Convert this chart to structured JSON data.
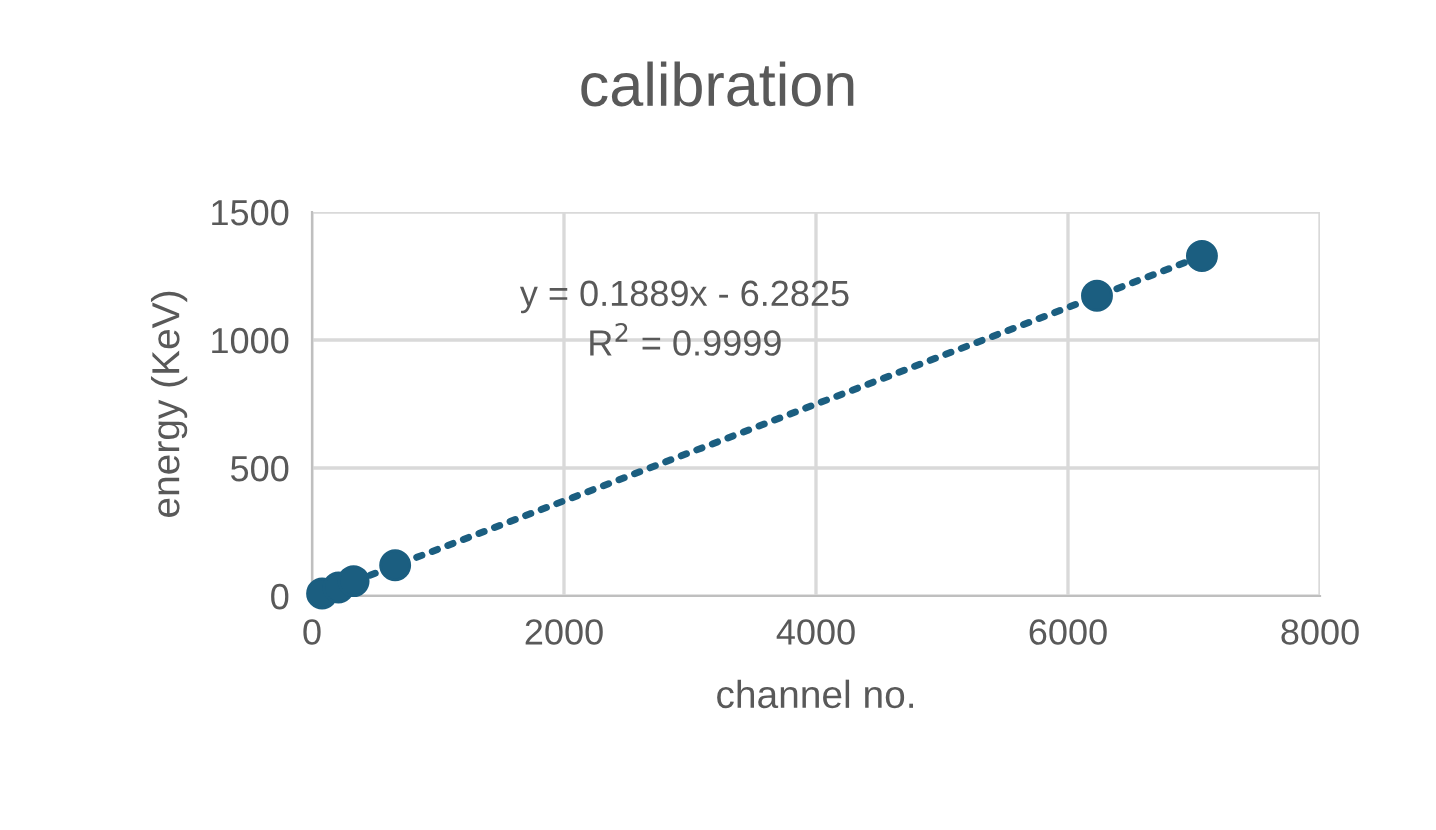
{
  "chart_data": {
    "type": "scatter",
    "title": "calibration",
    "xlabel": "channel no.",
    "ylabel": "energy (KeV)",
    "series": [
      {
        "color": "#1b5e80",
        "x": [
          80,
          210,
          330,
          660,
          6230,
          7063
        ],
        "values": [
          10,
          33,
          58,
          120,
          1173,
          1328
        ],
        "marker": "circle"
      },
      {
        "type": "line",
        "color": "#1b5e80",
        "x": [
          90,
          7063
        ],
        "values": [
          11,
          1328
        ],
        "line_style": "dotted",
        "marker": "none"
      }
    ],
    "annotations": [
      "y = 0.1889x - 6.2825",
      "R$^{2}$ = 0.9999"
    ],
    "xlim": [
      0,
      8000
    ],
    "xticks": [
      0,
      2000,
      4000,
      6000,
      8000
    ],
    "ylim": [
      0,
      1500
    ],
    "yticks": [
      0,
      500,
      1000,
      1500
    ],
    "grid": true,
    "legend": false
  }
}
